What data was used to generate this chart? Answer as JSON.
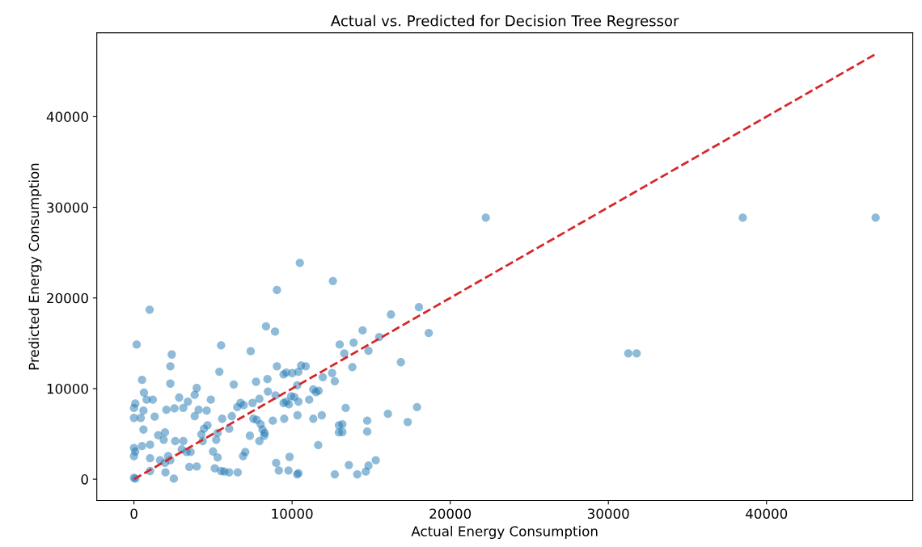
{
  "chart_data": {
    "type": "scatter",
    "title": "Actual vs. Predicted for Decision Tree Regressor",
    "xlabel": "Actual Energy Consumption",
    "ylabel": "Predicted Energy Consumption",
    "xlim": [
      -2350,
      49250
    ],
    "ylim": [
      -2350,
      49250
    ],
    "xticks": [
      0,
      10000,
      20000,
      30000,
      40000
    ],
    "yticks": [
      0,
      10000,
      20000,
      30000,
      40000
    ],
    "grid": false,
    "series": [
      {
        "marker": "circle",
        "color": "#1f77b4",
        "x": [
          990,
          170,
          2390,
          2300,
          2300,
          510,
          630,
          800,
          1190,
          85,
          0,
          600,
          0,
          430,
          1310,
          2050,
          2560,
          3120,
          2860,
          3410,
          3840,
          3970,
          3840,
          4090,
          4600,
          4860,
          5510,
          5400,
          6310,
          7380,
          8350,
          8920,
          600,
          1530,
          1960,
          1880,
          0,
          85,
          0,
          510,
          1020,
          1020,
          1650,
          2160,
          2300,
          1960,
          2610,
          3120,
          3020,
          3320,
          3580,
          3500,
          3970,
          2520,
          1990,
          1020,
          0,
          85,
          4260,
          4430,
          4650,
          4350,
          5200,
          5290,
          5580,
          6020,
          5000,
          5290,
          5110,
          5510,
          5710,
          6020,
          6560,
          6190,
          6530,
          6740,
          6940,
          7500,
          7930,
          7720,
          8440,
          8470,
          8950,
          7550,
          7760,
          8010,
          8130,
          8270,
          8240,
          7930,
          8780,
          7330,
          6900,
          7040,
          8990,
          9160,
          9840,
          9770,
          10320,
          10400,
          9040,
          9460,
          9630,
          10010,
          10400,
          10570,
          10860,
          9460,
          9630,
          9800,
          9940,
          10140,
          10400,
          10320,
          9500,
          10340,
          11080,
          11340,
          11510,
          11680,
          11940,
          11340,
          11880,
          11650,
          12700,
          12530,
          12700,
          13010,
          12960,
          12960,
          10490,
          12580,
          9040,
          18020,
          16250,
          18640,
          14460,
          13890,
          15510,
          13300,
          14830,
          13810,
          16880,
          13390,
          14750,
          14750,
          13180,
          13180,
          16060,
          17310,
          17900,
          13590,
          14120,
          14660,
          14830,
          15290,
          22250,
          38500,
          46900,
          31260,
          31790
        ],
        "values": [
          18700,
          14860,
          13760,
          12460,
          10550,
          10960,
          9550,
          8770,
          8770,
          8350,
          7860,
          7570,
          6760,
          6760,
          6910,
          7660,
          7810,
          7860,
          9010,
          8560,
          9310,
          10060,
          6960,
          7660,
          7570,
          8770,
          14770,
          11860,
          10450,
          14120,
          16870,
          16280,
          5470,
          4860,
          5160,
          4350,
          3450,
          3060,
          2550,
          3660,
          3810,
          2310,
          2100,
          2550,
          2100,
          1800,
          4200,
          4200,
          3300,
          3000,
          3000,
          1350,
          1410,
          60,
          750,
          900,
          150,
          60,
          4950,
          5560,
          5950,
          4200,
          4350,
          5100,
          6670,
          5560,
          3060,
          2400,
          1200,
          900,
          840,
          750,
          750,
          6960,
          7960,
          8410,
          8170,
          8410,
          8860,
          10750,
          11050,
          9670,
          9250,
          6670,
          6550,
          6060,
          5470,
          5100,
          4800,
          4200,
          6460,
          4800,
          2550,
          3000,
          1800,
          960,
          2460,
          960,
          540,
          660,
          12460,
          11560,
          11770,
          11710,
          11860,
          12550,
          12460,
          8410,
          8560,
          8260,
          9160,
          9070,
          8560,
          10360,
          6670,
          7050,
          8770,
          9910,
          9610,
          9760,
          11260,
          6670,
          7050,
          3760,
          540,
          11710,
          10810,
          14860,
          5950,
          5160,
          23870,
          21860,
          20870,
          18980,
          18170,
          16130,
          16420,
          15070,
          15680,
          13870,
          14170,
          12370,
          12910,
          7860,
          6460,
          5250,
          6060,
          5200,
          7210,
          6310,
          7960,
          1560,
          540,
          840,
          1500,
          2100,
          28860,
          28860,
          28860,
          13890,
          13890
        ]
      },
      {
        "type": "line",
        "color": "#d62728",
        "line_style": "dashed",
        "marker": "none",
        "x": [
          0,
          46900
        ],
        "values": [
          0,
          46900
        ]
      }
    ]
  }
}
